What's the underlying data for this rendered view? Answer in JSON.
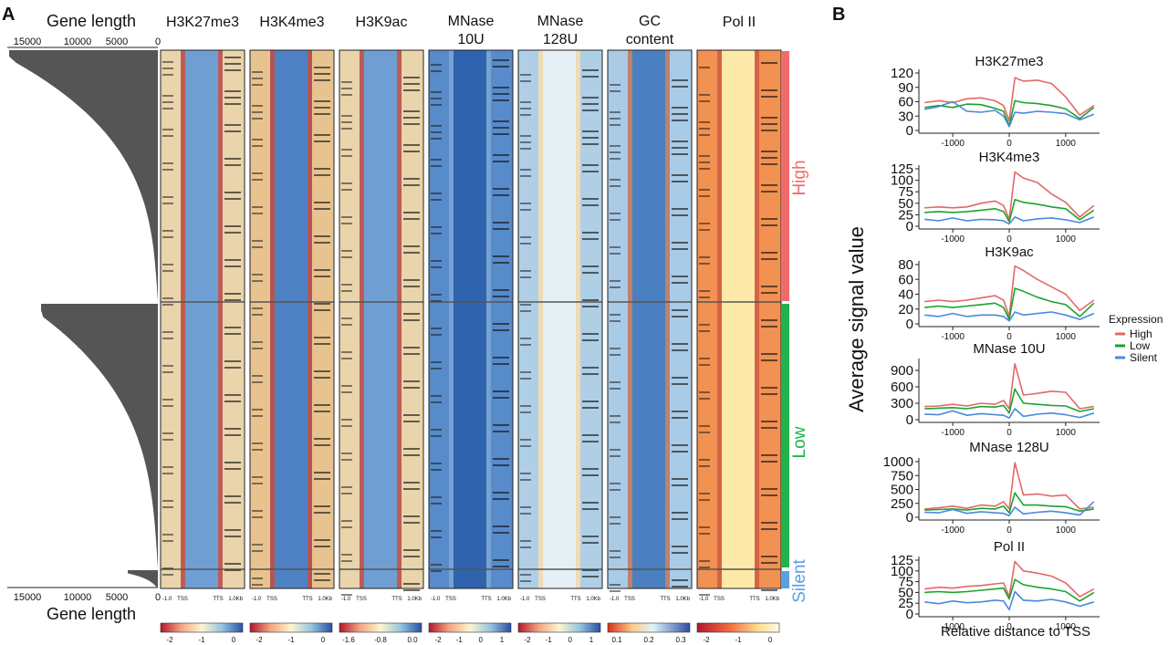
{
  "panel_labels": {
    "a": "A",
    "b": "B"
  },
  "left_panel": {
    "gene_length_title": "Gene length",
    "gene_length_xlabel": "Gene length",
    "gene_length_ticks": [
      "15000",
      "10000",
      "5000",
      "0"
    ],
    "gene_length_ticks_bottom": [
      "15000",
      "10000",
      "5000",
      "0"
    ],
    "heatmap_titles": [
      [
        "H3K27me3"
      ],
      [
        "H3K4me3"
      ],
      [
        "H3K9ac"
      ],
      [
        "MNase",
        "10U"
      ],
      [
        "MNase",
        "128U"
      ],
      [
        "GC",
        "content"
      ],
      [
        "Pol II"
      ]
    ],
    "heatmap_xticks": [
      "-1.0",
      "TSS",
      "TTS",
      "1.0Kb"
    ],
    "colorbar_ticks": [
      [
        "-2",
        "-1",
        "0"
      ],
      [
        "-2",
        "-1",
        "0"
      ],
      [
        "-1.6",
        "-0.8",
        "0.0"
      ],
      [
        "-2",
        "-1",
        "0",
        "1"
      ],
      [
        "-2",
        "-1",
        "0",
        "1"
      ],
      [
        "0.1",
        "0.2",
        "0.3"
      ],
      [
        "-2",
        "-1",
        "0"
      ]
    ],
    "groups": [
      {
        "label": "High",
        "color": "#f26b6b"
      },
      {
        "label": "Low",
        "color": "#22b24c"
      },
      {
        "label": "Silent",
        "color": "#5b9ee6"
      }
    ]
  },
  "right_panel": {
    "ylabel": "Average signal value",
    "xlabel": "Relative distance to TSS",
    "legend_title": "Expression",
    "legend": [
      {
        "name": "High",
        "color": "#e36868"
      },
      {
        "name": "Low",
        "color": "#1aa32f"
      },
      {
        "name": "Silent",
        "color": "#4a88dd"
      }
    ]
  },
  "chart_data": [
    {
      "type": "line",
      "title": "H3K27me3",
      "x": [
        -1500,
        -1250,
        -1000,
        -750,
        -500,
        -250,
        -100,
        0,
        100,
        250,
        500,
        750,
        1000,
        1250,
        1500
      ],
      "xticks": [
        -1000,
        0,
        1000
      ],
      "xticklabels": [
        "-1000",
        "0",
        "1000"
      ],
      "ylim": [
        0,
        120
      ],
      "yticks": [
        0,
        30,
        60,
        90,
        120
      ],
      "yticklabels": [
        "0",
        "30",
        "60",
        "90",
        "120"
      ],
      "series": [
        {
          "name": "High",
          "values": [
            58,
            62,
            58,
            66,
            68,
            62,
            52,
            20,
            110,
            103,
            105,
            98,
            70,
            32,
            52
          ]
        },
        {
          "name": "Low",
          "values": [
            48,
            52,
            48,
            55,
            54,
            46,
            40,
            10,
            62,
            58,
            56,
            52,
            45,
            25,
            48
          ]
        },
        {
          "name": "Silent",
          "values": [
            44,
            50,
            60,
            40,
            38,
            42,
            30,
            8,
            38,
            36,
            40,
            38,
            35,
            22,
            34
          ]
        }
      ]
    },
    {
      "type": "line",
      "title": "H3K4me3",
      "x": [
        -1500,
        -1250,
        -1000,
        -750,
        -500,
        -250,
        -100,
        0,
        100,
        250,
        500,
        750,
        1000,
        1250,
        1500
      ],
      "xticks": [
        -1000,
        0,
        1000
      ],
      "xticklabels": [
        "-1000",
        "0",
        "1000"
      ],
      "ylim": [
        0,
        125
      ],
      "yticks": [
        0,
        25,
        50,
        75,
        100,
        125
      ],
      "yticklabels": [
        "0",
        "25",
        "50",
        "75",
        "100",
        "125"
      ],
      "series": [
        {
          "name": "High",
          "values": [
            40,
            42,
            40,
            42,
            50,
            55,
            45,
            15,
            118,
            105,
            95,
            70,
            52,
            20,
            45
          ]
        },
        {
          "name": "Low",
          "values": [
            30,
            32,
            30,
            32,
            35,
            38,
            32,
            10,
            58,
            52,
            48,
            42,
            38,
            14,
            35
          ]
        },
        {
          "name": "Silent",
          "values": [
            15,
            12,
            18,
            12,
            15,
            14,
            12,
            5,
            20,
            12,
            16,
            18,
            14,
            8,
            20
          ]
        }
      ]
    },
    {
      "type": "line",
      "title": "H3K9ac",
      "x": [
        -1500,
        -1250,
        -1000,
        -750,
        -500,
        -250,
        -100,
        0,
        100,
        250,
        500,
        750,
        1000,
        1250,
        1500
      ],
      "xticks": [
        -1000,
        0,
        1000
      ],
      "xticklabels": [
        "-1000",
        "0",
        "1000"
      ],
      "ylim": [
        0,
        80
      ],
      "yticks": [
        0,
        20,
        40,
        60,
        80
      ],
      "yticklabels": [
        "0",
        "20",
        "40",
        "60",
        "80"
      ],
      "series": [
        {
          "name": "High",
          "values": [
            30,
            32,
            30,
            32,
            35,
            38,
            32,
            10,
            78,
            72,
            60,
            50,
            40,
            18,
            32
          ]
        },
        {
          "name": "Low",
          "values": [
            22,
            24,
            22,
            24,
            26,
            28,
            22,
            6,
            48,
            44,
            36,
            30,
            26,
            10,
            28
          ]
        },
        {
          "name": "Silent",
          "values": [
            12,
            10,
            14,
            10,
            12,
            12,
            10,
            4,
            16,
            12,
            14,
            16,
            12,
            6,
            14
          ]
        }
      ]
    },
    {
      "type": "line",
      "title": "MNase  10U",
      "x": [
        -1500,
        -1250,
        -1000,
        -750,
        -500,
        -250,
        -100,
        0,
        100,
        250,
        500,
        750,
        1000,
        1250,
        1500
      ],
      "xticks": [
        -1000,
        0,
        1000
      ],
      "xticklabels": [
        "-1000",
        "0",
        "1000"
      ],
      "ylim": [
        0,
        1050
      ],
      "yticks": [
        0,
        300,
        600,
        900
      ],
      "yticklabels": [
        "0",
        "300",
        "600",
        "900"
      ],
      "series": [
        {
          "name": "High",
          "values": [
            240,
            250,
            280,
            250,
            300,
            280,
            350,
            200,
            1020,
            450,
            480,
            520,
            500,
            200,
            240
          ]
        },
        {
          "name": "Low",
          "values": [
            200,
            210,
            220,
            200,
            240,
            230,
            260,
            120,
            560,
            300,
            280,
            260,
            250,
            150,
            200
          ]
        },
        {
          "name": "Silent",
          "values": [
            100,
            90,
            160,
            80,
            110,
            90,
            80,
            30,
            200,
            60,
            100,
            120,
            90,
            40,
            120
          ]
        }
      ]
    },
    {
      "type": "line",
      "title": "MNase  128U",
      "x": [
        -1500,
        -1250,
        -1000,
        -750,
        -500,
        -250,
        -100,
        0,
        100,
        250,
        500,
        750,
        1000,
        1250,
        1500
      ],
      "xticks": [
        -1000,
        0,
        1000
      ],
      "xticklabels": [
        "-1000",
        "0",
        "1000"
      ],
      "ylim": [
        0,
        1000
      ],
      "yticks": [
        0,
        250,
        500,
        750,
        1000
      ],
      "yticklabels": [
        "0",
        "250",
        "500",
        "750",
        "1000"
      ],
      "series": [
        {
          "name": "High",
          "values": [
            150,
            170,
            200,
            160,
            220,
            200,
            280,
            150,
            980,
            400,
            420,
            380,
            400,
            150,
            180
          ]
        },
        {
          "name": "Low",
          "values": [
            130,
            140,
            150,
            130,
            160,
            150,
            200,
            80,
            440,
            220,
            220,
            200,
            190,
            110,
            150
          ]
        },
        {
          "name": "Silent",
          "values": [
            90,
            80,
            140,
            70,
            100,
            80,
            70,
            30,
            180,
            60,
            90,
            110,
            80,
            40,
            280
          ]
        }
      ]
    },
    {
      "type": "line",
      "title": "Pol II",
      "x": [
        -1500,
        -1250,
        -1000,
        -750,
        -500,
        -250,
        -100,
        0,
        100,
        250,
        500,
        750,
        1000,
        1250,
        1500
      ],
      "xticks": [
        -1000,
        0,
        1000
      ],
      "xticklabels": [
        "-1000",
        "0",
        "1000"
      ],
      "ylim": [
        0,
        125
      ],
      "yticks": [
        0,
        25,
        50,
        75,
        100,
        125
      ],
      "yticklabels": [
        "0",
        "25",
        "50",
        "75",
        "100",
        "125"
      ],
      "series": [
        {
          "name": "High",
          "values": [
            58,
            62,
            60,
            64,
            66,
            70,
            72,
            40,
            122,
            100,
            95,
            88,
            72,
            40,
            58
          ]
        },
        {
          "name": "Low",
          "values": [
            50,
            52,
            50,
            52,
            55,
            58,
            60,
            35,
            80,
            68,
            62,
            58,
            52,
            30,
            50
          ]
        },
        {
          "name": "Silent",
          "values": [
            28,
            24,
            30,
            26,
            28,
            32,
            30,
            10,
            52,
            32,
            30,
            34,
            28,
            18,
            28
          ]
        }
      ]
    }
  ]
}
